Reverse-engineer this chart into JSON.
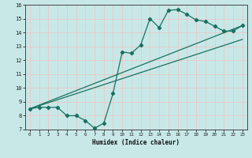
{
  "xlabel": "Humidex (Indice chaleur)",
  "bg_color": "#c8e8e8",
  "grid_color": "#e8c8c8",
  "line_color": "#1a7060",
  "xlim": [
    -0.5,
    23.5
  ],
  "ylim": [
    7,
    16
  ],
  "xticks": [
    0,
    1,
    2,
    3,
    4,
    5,
    6,
    7,
    8,
    9,
    10,
    11,
    12,
    13,
    14,
    15,
    16,
    17,
    18,
    19,
    20,
    21,
    22,
    23
  ],
  "yticks": [
    7,
    8,
    9,
    10,
    11,
    12,
    13,
    14,
    15,
    16
  ],
  "curve1_x": [
    0,
    1,
    2,
    3,
    4,
    5,
    6,
    7,
    8,
    9,
    10,
    11,
    12,
    13,
    14,
    15,
    16,
    17,
    18,
    19,
    20,
    21,
    22,
    23
  ],
  "curve1_y": [
    8.5,
    8.6,
    8.6,
    8.6,
    8.0,
    8.0,
    7.65,
    7.1,
    7.45,
    9.6,
    12.6,
    12.5,
    13.1,
    15.0,
    14.35,
    15.6,
    15.65,
    15.3,
    14.9,
    14.8,
    14.45,
    14.1,
    14.1,
    14.5
  ],
  "line1_x": [
    0,
    23
  ],
  "line1_y": [
    8.5,
    14.5
  ],
  "line2_x": [
    0,
    23
  ],
  "line2_y": [
    8.5,
    13.5
  ]
}
